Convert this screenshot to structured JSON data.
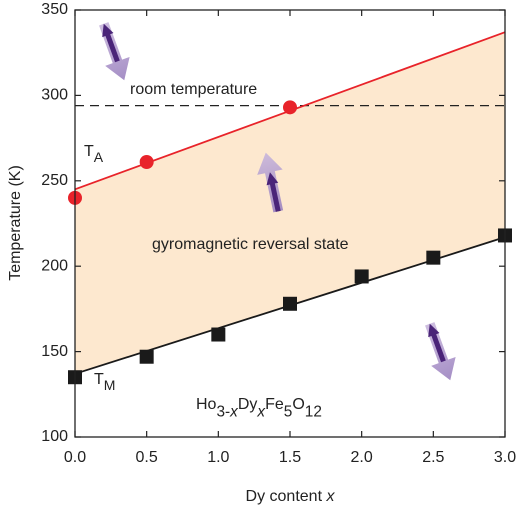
{
  "chart_data": {
    "type": "line",
    "x_label": [
      {
        "text": "Dy content "
      },
      {
        "text": "x",
        "italic": true
      }
    ],
    "y_label": "Temperature (K)",
    "xlim": [
      0,
      3
    ],
    "ylim": [
      100,
      350
    ],
    "xticks": [
      {
        "value": 0,
        "label": "0.0"
      },
      {
        "value": 0.5,
        "label": "0.5"
      },
      {
        "value": 1,
        "label": "1.0"
      },
      {
        "value": 1.5,
        "label": "1.5"
      },
      {
        "value": 2,
        "label": "2.0"
      },
      {
        "value": 2.5,
        "label": "2.5"
      },
      {
        "value": 3,
        "label": "3.0"
      }
    ],
    "yticks": [
      100,
      150,
      200,
      250,
      300,
      350
    ],
    "series": [
      {
        "label": {
          "base": "T",
          "sub": "A"
        },
        "color": "#e8232a",
        "marker": "circle",
        "x": [
          0,
          0.5,
          1.5
        ],
        "values": [
          240,
          261,
          293
        ],
        "fit": {
          "x": [
            0,
            3
          ],
          "values": [
            245,
            337
          ]
        }
      },
      {
        "label": {
          "base": "T",
          "sub": "M"
        },
        "color": "#1a1a1a",
        "marker": "square",
        "x": [
          0,
          0.5,
          1,
          1.5,
          2,
          2.5,
          3
        ],
        "values": [
          135,
          147,
          160,
          178,
          194,
          205,
          218
        ],
        "fit": {
          "x": [
            0,
            3
          ],
          "values": [
            137,
            217
          ]
        }
      }
    ],
    "room_temperature": {
      "label": "room temperature",
      "value": 294
    },
    "region": {
      "label": "gyromagnetic reversal state",
      "color": "#fde8cf"
    },
    "formula": [
      {
        "text": "Ho"
      },
      {
        "text": "3-",
        "sub": true
      },
      {
        "text": "x",
        "sub": true,
        "italic": true
      },
      {
        "text": "Dy"
      },
      {
        "text": "x",
        "sub": true,
        "italic": true
      },
      {
        "text": "Fe"
      },
      {
        "text": "5",
        "sub": true
      },
      {
        "text": "O"
      },
      {
        "text": "12",
        "sub": true
      }
    ]
  }
}
